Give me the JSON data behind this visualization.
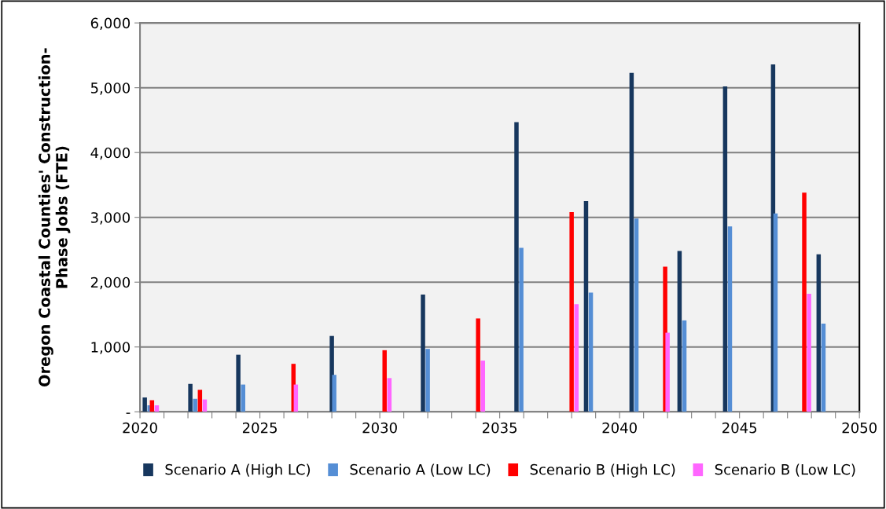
{
  "chart_data": {
    "type": "bar",
    "ylabel": "Oregon Coastal Counties' Construction-\nPhase Jobs (FTE)",
    "xlim": [
      2020,
      2050
    ],
    "xticks": [
      2020,
      {
        "value": 2021,
        "label": null
      },
      {
        "value": 2022,
        "label": null
      },
      {
        "value": 2023,
        "label": null
      },
      {
        "value": 2024,
        "label": null
      },
      2025,
      {
        "value": 2026,
        "label": null
      },
      {
        "value": 2027,
        "label": null
      },
      {
        "value": 2028,
        "label": null
      },
      {
        "value": 2029,
        "label": null
      },
      2030,
      {
        "value": 2031,
        "label": null
      },
      {
        "value": 2032,
        "label": null
      },
      {
        "value": 2033,
        "label": null
      },
      {
        "value": 2034,
        "label": null
      },
      2035,
      {
        "value": 2036,
        "label": null
      },
      {
        "value": 2037,
        "label": null
      },
      {
        "value": 2038,
        "label": null
      },
      {
        "value": 2039,
        "label": null
      },
      2040,
      {
        "value": 2041,
        "label": null
      },
      {
        "value": 2042,
        "label": null
      },
      {
        "value": 2043,
        "label": null
      },
      {
        "value": 2044,
        "label": null
      },
      2045,
      {
        "value": 2046,
        "label": null
      },
      {
        "value": 2047,
        "label": null
      },
      {
        "value": 2048,
        "label": null
      },
      {
        "value": 2049,
        "label": null
      },
      2050
    ],
    "ylim": [
      0,
      6000
    ],
    "yticks": [
      {
        "value": 0,
        "label": "-"
      },
      {
        "value": 1000,
        "label": "1,000"
      },
      {
        "value": 2000,
        "label": "2,000"
      },
      {
        "value": 3000,
        "label": "3,000"
      },
      {
        "value": 4000,
        "label": "4,000"
      },
      {
        "value": 5000,
        "label": "5,000"
      },
      {
        "value": 6000,
        "label": "6,000"
      }
    ],
    "grid": "y",
    "legend": "bottom",
    "series": [
      {
        "name": "Scenario A (High LC)",
        "color": "#17375e",
        "x": [
          2020.2,
          2022.1,
          2024.1,
          2028.0,
          2031.8,
          2035.7,
          2038.6,
          2040.5,
          2042.5,
          2044.4,
          2046.4,
          2048.3
        ],
        "values": [
          220,
          430,
          880,
          1170,
          1810,
          4470,
          3250,
          5230,
          2480,
          5020,
          5360,
          2430
        ]
      },
      {
        "name": "Scenario A (Low LC)",
        "color": "#558ed5",
        "x": [
          2020.4,
          2022.3,
          2024.3,
          2028.1,
          2032.0,
          2035.9,
          2038.8,
          2040.7,
          2042.7,
          2044.6,
          2046.5,
          2048.5
        ],
        "values": [
          100,
          200,
          420,
          570,
          970,
          2530,
          1840,
          2980,
          1410,
          2860,
          3060,
          1360
        ]
      },
      {
        "name": "Scenario B (High LC)",
        "color": "#ff0000",
        "x": [
          2020.5,
          2022.5,
          2026.4,
          2030.2,
          2034.1,
          2038.0,
          2041.9,
          2047.7
        ],
        "values": [
          180,
          340,
          740,
          950,
          1440,
          3080,
          2240,
          3380
        ]
      },
      {
        "name": "Scenario B (Low LC)",
        "color": "#ff66ff",
        "x": [
          2020.7,
          2022.7,
          2026.5,
          2030.4,
          2034.3,
          2038.2,
          2042.0,
          2047.9
        ],
        "values": [
          100,
          190,
          420,
          520,
          790,
          1660,
          1220,
          1820
        ]
      }
    ]
  }
}
